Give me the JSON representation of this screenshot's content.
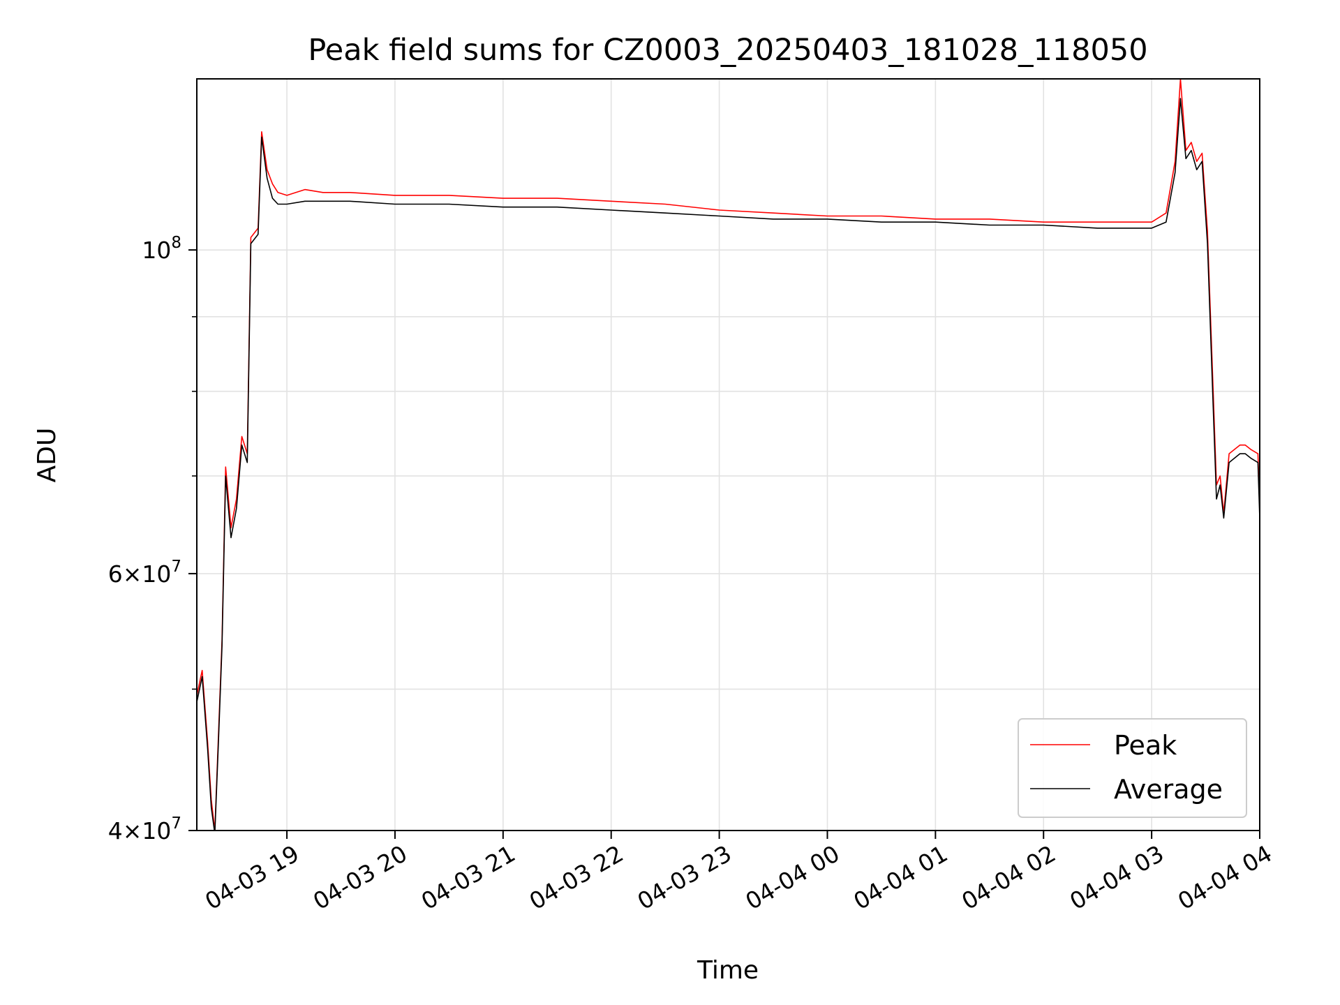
{
  "chart_data": {
    "type": "line",
    "title": "Peak field sums for CZ0003_20250403_181028_118050",
    "xlabel": "Time",
    "ylabel": "ADU",
    "y_scale": "log",
    "ylim": [
      40000000,
      131000000
    ],
    "xlim": [
      "2025-04-03 18:10",
      "2025-04-04 04:00"
    ],
    "grid": true,
    "legend_position": "lower-right",
    "x_tick_labels": [
      "04-03 19",
      "04-03 20",
      "04-03 21",
      "04-03 22",
      "04-03 23",
      "04-04 00",
      "04-04 01",
      "04-04 02",
      "04-04 03",
      "04-04 04"
    ],
    "x_tick_times": [
      "2025-04-03 19:00",
      "2025-04-03 20:00",
      "2025-04-03 21:00",
      "2025-04-03 22:00",
      "2025-04-03 23:00",
      "2025-04-04 00:00",
      "2025-04-04 01:00",
      "2025-04-04 02:00",
      "2025-04-04 03:00",
      "2025-04-04 04:00"
    ],
    "y_major_ticks": [
      {
        "value": 40000000,
        "mantissa": "4",
        "exp": "7"
      },
      {
        "value": 60000000,
        "mantissa": "6",
        "exp": "7"
      },
      {
        "value": 100000000,
        "mantissa": "",
        "exp": "8"
      }
    ],
    "y_minor_ticks": [
      50000000,
      70000000,
      80000000,
      90000000
    ],
    "series": [
      {
        "name": "Peak",
        "color": "#ff0000",
        "x": [
          "2025-04-03 18:10",
          "2025-04-03 18:13",
          "2025-04-03 18:16",
          "2025-04-03 18:18",
          "2025-04-03 18:20",
          "2025-04-03 18:22",
          "2025-04-03 18:24",
          "2025-04-03 18:26",
          "2025-04-03 18:29",
          "2025-04-03 18:32",
          "2025-04-03 18:35",
          "2025-04-03 18:38",
          "2025-04-03 18:40",
          "2025-04-03 18:44",
          "2025-04-03 18:46",
          "2025-04-03 18:49",
          "2025-04-03 18:52",
          "2025-04-03 18:55",
          "2025-04-03 19:00",
          "2025-04-03 19:10",
          "2025-04-03 19:20",
          "2025-04-03 19:35",
          "2025-04-03 20:00",
          "2025-04-03 20:30",
          "2025-04-03 21:00",
          "2025-04-03 21:30",
          "2025-04-03 22:00",
          "2025-04-03 22:30",
          "2025-04-03 23:00",
          "2025-04-03 23:30",
          "2025-04-04 00:00",
          "2025-04-04 00:30",
          "2025-04-04 01:00",
          "2025-04-04 01:30",
          "2025-04-04 02:00",
          "2025-04-04 02:30",
          "2025-04-04 03:00",
          "2025-04-04 03:08",
          "2025-04-04 03:13",
          "2025-04-04 03:16",
          "2025-04-04 03:19",
          "2025-04-04 03:22",
          "2025-04-04 03:25",
          "2025-04-04 03:28",
          "2025-04-04 03:31",
          "2025-04-04 03:34",
          "2025-04-04 03:36",
          "2025-04-04 03:38",
          "2025-04-04 03:40",
          "2025-04-04 03:43",
          "2025-04-04 03:46",
          "2025-04-04 03:49",
          "2025-04-04 03:52",
          "2025-04-04 03:55",
          "2025-04-04 03:59",
          "2025-04-04 04:00"
        ],
        "y": [
          49500000,
          51500000,
          46000000,
          42000000,
          40000000,
          46500000,
          54000000,
          71000000,
          64500000,
          67500000,
          74500000,
          72500000,
          102000000,
          103500000,
          120500000,
          113500000,
          111000000,
          109500000,
          109000000,
          110000000,
          109500000,
          109500000,
          109000000,
          109000000,
          108500000,
          108500000,
          108000000,
          107500000,
          106500000,
          106000000,
          105500000,
          105500000,
          105000000,
          105000000,
          104500000,
          104500000,
          104500000,
          106000000,
          115000000,
          131000000,
          117000000,
          118500000,
          115000000,
          116500000,
          103000000,
          81000000,
          69000000,
          70000000,
          66000000,
          72500000,
          73000000,
          73500000,
          73500000,
          73000000,
          72500000,
          67000000
        ]
      },
      {
        "name": "Average",
        "color": "#000000",
        "x": [
          "2025-04-03 18:10",
          "2025-04-03 18:13",
          "2025-04-03 18:16",
          "2025-04-03 18:18",
          "2025-04-03 18:20",
          "2025-04-03 18:22",
          "2025-04-03 18:24",
          "2025-04-03 18:26",
          "2025-04-03 18:29",
          "2025-04-03 18:32",
          "2025-04-03 18:35",
          "2025-04-03 18:38",
          "2025-04-03 18:40",
          "2025-04-03 18:44",
          "2025-04-03 18:46",
          "2025-04-03 18:49",
          "2025-04-03 18:52",
          "2025-04-03 18:55",
          "2025-04-03 19:00",
          "2025-04-03 19:10",
          "2025-04-03 19:20",
          "2025-04-03 19:35",
          "2025-04-03 20:00",
          "2025-04-03 20:30",
          "2025-04-03 21:00",
          "2025-04-03 21:30",
          "2025-04-03 22:00",
          "2025-04-03 22:30",
          "2025-04-03 23:00",
          "2025-04-03 23:30",
          "2025-04-04 00:00",
          "2025-04-04 00:30",
          "2025-04-04 01:00",
          "2025-04-04 01:30",
          "2025-04-04 02:00",
          "2025-04-04 02:30",
          "2025-04-04 03:00",
          "2025-04-04 03:08",
          "2025-04-04 03:13",
          "2025-04-04 03:16",
          "2025-04-04 03:19",
          "2025-04-04 03:22",
          "2025-04-04 03:25",
          "2025-04-04 03:28",
          "2025-04-04 03:31",
          "2025-04-04 03:34",
          "2025-04-04 03:36",
          "2025-04-04 03:38",
          "2025-04-04 03:40",
          "2025-04-04 03:43",
          "2025-04-04 03:46",
          "2025-04-04 03:49",
          "2025-04-04 03:52",
          "2025-04-04 03:55",
          "2025-04-04 03:59",
          "2025-04-04 04:00"
        ],
        "y": [
          49000000,
          51000000,
          45500000,
          41500000,
          39800000,
          46000000,
          53500000,
          70000000,
          63500000,
          66500000,
          73500000,
          71500000,
          101000000,
          102500000,
          119500000,
          112000000,
          108500000,
          107500000,
          107500000,
          108000000,
          108000000,
          108000000,
          107500000,
          107500000,
          107000000,
          107000000,
          106500000,
          106000000,
          105500000,
          105000000,
          105000000,
          104500000,
          104500000,
          104000000,
          104000000,
          103500000,
          103500000,
          104500000,
          113000000,
          127000000,
          115500000,
          117000000,
          113500000,
          115000000,
          101000000,
          79000000,
          67500000,
          69000000,
          65500000,
          71500000,
          72000000,
          72500000,
          72500000,
          72000000,
          71500000,
          65500000
        ]
      }
    ]
  }
}
